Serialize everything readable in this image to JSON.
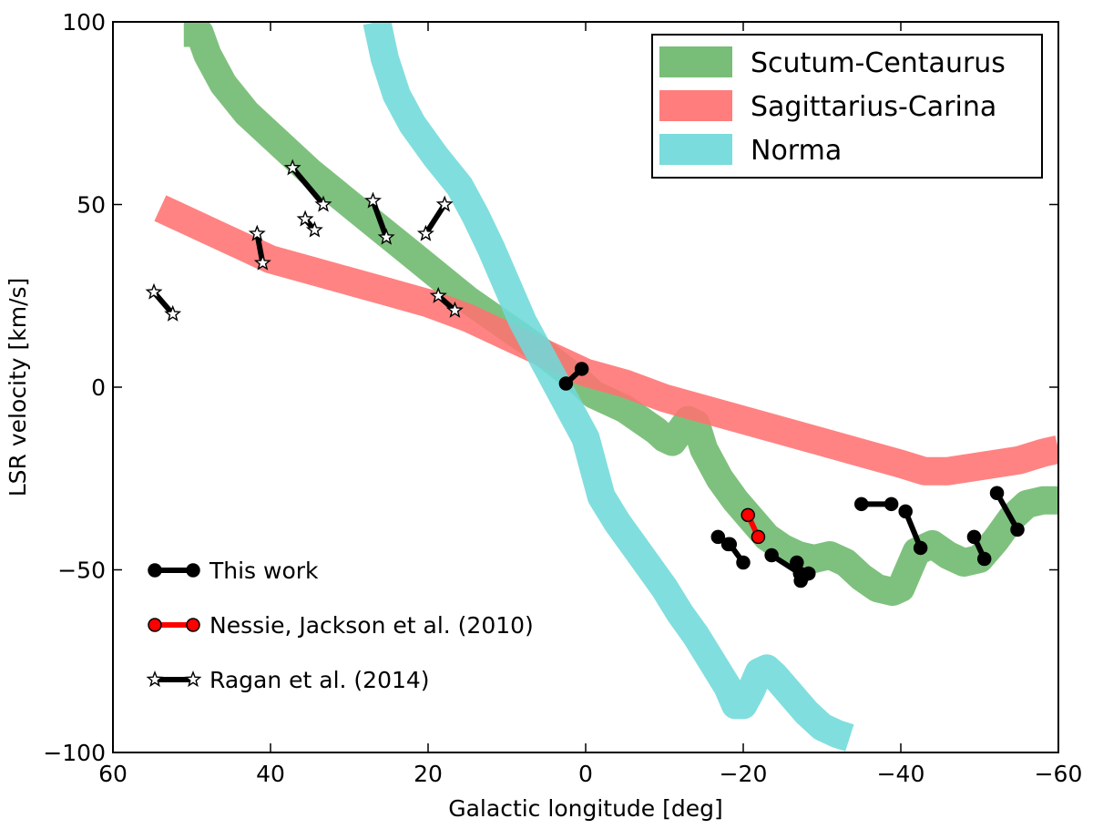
{
  "chart_data": {
    "type": "line",
    "xlabel": "Galactic longitude [deg]",
    "ylabel": "LSR velocity [km/s]",
    "xlim": [
      60,
      -60
    ],
    "ylim": [
      -100,
      100
    ],
    "xticks": [
      60,
      40,
      20,
      0,
      -20,
      -40,
      -60
    ],
    "yticks": [
      100,
      50,
      0,
      -50,
      -100
    ],
    "xtick_labels": [
      "60",
      "40",
      "20",
      "0",
      "−20",
      "−40",
      "−60"
    ],
    "ytick_labels": [
      "100",
      "50",
      "0",
      "−50",
      "−100"
    ],
    "arm_series": [
      {
        "name": "Scutum-Centaurus",
        "color": "#6cb86c",
        "points": [
          [
            51,
            97
          ],
          [
            49,
            97
          ],
          [
            48,
            91
          ],
          [
            46,
            83
          ],
          [
            43,
            75
          ],
          [
            39,
            67
          ],
          [
            35,
            59
          ],
          [
            31,
            52
          ],
          [
            27,
            45
          ],
          [
            23,
            38
          ],
          [
            19,
            31
          ],
          [
            15,
            24
          ],
          [
            11,
            18
          ],
          [
            7,
            12
          ],
          [
            4,
            7
          ],
          [
            1,
            2
          ],
          [
            -1,
            -2
          ],
          [
            -3,
            -4
          ],
          [
            -5,
            -6
          ],
          [
            -7,
            -9
          ],
          [
            -9,
            -12
          ],
          [
            -10,
            -14
          ],
          [
            -11,
            -15
          ],
          [
            -12,
            -12
          ],
          [
            -13,
            -9
          ],
          [
            -14,
            -10
          ],
          [
            -15,
            -17
          ],
          [
            -17,
            -25
          ],
          [
            -19,
            -31
          ],
          [
            -21,
            -36
          ],
          [
            -23,
            -41
          ],
          [
            -25,
            -44
          ],
          [
            -27,
            -46
          ],
          [
            -29,
            -47
          ],
          [
            -31,
            -46
          ],
          [
            -33,
            -48
          ],
          [
            -35,
            -52
          ],
          [
            -37,
            -55
          ],
          [
            -39,
            -56
          ],
          [
            -40,
            -55
          ],
          [
            -41,
            -50
          ],
          [
            -42,
            -45
          ],
          [
            -44,
            -43
          ],
          [
            -46,
            -46
          ],
          [
            -48,
            -48
          ],
          [
            -50,
            -47
          ],
          [
            -52,
            -42
          ],
          [
            -54,
            -36
          ],
          [
            -56,
            -32
          ],
          [
            -58,
            -31
          ],
          [
            -60,
            -31
          ]
        ]
      },
      {
        "name": "Sagittarius-Carina",
        "color": "#ff7272",
        "points": [
          [
            54,
            49
          ],
          [
            52,
            47
          ],
          [
            48,
            43
          ],
          [
            44,
            39
          ],
          [
            40,
            35
          ],
          [
            35,
            32
          ],
          [
            30,
            29
          ],
          [
            25,
            26
          ],
          [
            20,
            23
          ],
          [
            15,
            19
          ],
          [
            10,
            14
          ],
          [
            5,
            9
          ],
          [
            0,
            4
          ],
          [
            -5,
            1
          ],
          [
            -10,
            -3
          ],
          [
            -15,
            -6
          ],
          [
            -20,
            -9
          ],
          [
            -25,
            -12
          ],
          [
            -30,
            -15
          ],
          [
            -35,
            -18
          ],
          [
            -40,
            -21
          ],
          [
            -43,
            -23
          ],
          [
            -46,
            -23
          ],
          [
            -49,
            -22
          ],
          [
            -52,
            -21
          ],
          [
            -55,
            -20
          ],
          [
            -58,
            -18
          ],
          [
            -60,
            -17
          ]
        ]
      },
      {
        "name": "Norma",
        "color": "#6fd9d9",
        "points": [
          [
            26.5,
            100
          ],
          [
            25.5,
            90
          ],
          [
            24,
            80
          ],
          [
            22,
            72
          ],
          [
            19,
            63
          ],
          [
            16,
            55
          ],
          [
            14,
            47
          ],
          [
            12,
            38
          ],
          [
            10,
            28
          ],
          [
            8,
            18
          ],
          [
            6,
            10
          ],
          [
            4,
            2
          ],
          [
            2,
            -6
          ],
          [
            0,
            -14
          ],
          [
            -1,
            -22
          ],
          [
            -2,
            -30
          ],
          [
            -4,
            -37
          ],
          [
            -6,
            -43
          ],
          [
            -8,
            -49
          ],
          [
            -10,
            -55
          ],
          [
            -12,
            -62
          ],
          [
            -14,
            -68
          ],
          [
            -16,
            -75
          ],
          [
            -18,
            -82
          ],
          [
            -19,
            -87
          ],
          [
            -20,
            -87
          ],
          [
            -21,
            -83
          ],
          [
            -22,
            -78
          ],
          [
            -23,
            -77
          ],
          [
            -24,
            -79
          ],
          [
            -26,
            -84
          ],
          [
            -28,
            -89
          ],
          [
            -30,
            -93
          ],
          [
            -32,
            -95
          ],
          [
            -33.5,
            -96
          ]
        ]
      }
    ],
    "this_work_pairs": [
      [
        [
          0.5,
          5
        ],
        [
          2.5,
          1
        ]
      ],
      [
        [
          -16.8,
          -41
        ],
        [
          -18.1,
          -43
        ]
      ],
      [
        [
          -18.3,
          -43
        ],
        [
          -20,
          -48
        ]
      ],
      [
        [
          -23.6,
          -46
        ],
        [
          -27.2,
          -51
        ]
      ],
      [
        [
          -26.8,
          -48
        ],
        [
          -27.3,
          -53
        ]
      ],
      [
        [
          -27.5,
          -52
        ],
        [
          -28.3,
          -51
        ]
      ],
      [
        [
          -35,
          -32
        ],
        [
          -38.8,
          -32
        ]
      ],
      [
        [
          -40.6,
          -34
        ],
        [
          -42.5,
          -44
        ]
      ],
      [
        [
          -49.3,
          -41
        ],
        [
          -50.6,
          -47
        ]
      ],
      [
        [
          -52.2,
          -29
        ],
        [
          -54.8,
          -39
        ]
      ]
    ],
    "nessie_pairs": [
      [
        [
          -20.6,
          -35
        ],
        [
          -21.9,
          -41
        ]
      ]
    ],
    "ragan_pairs": [
      [
        [
          54.8,
          26
        ],
        [
          52.4,
          20
        ]
      ],
      [
        [
          41.7,
          42
        ],
        [
          41,
          34
        ]
      ],
      [
        [
          37.2,
          60
        ],
        [
          33.3,
          50
        ]
      ],
      [
        [
          35.6,
          46
        ],
        [
          34.4,
          43
        ]
      ],
      [
        [
          27,
          51
        ],
        [
          25.3,
          41
        ]
      ],
      [
        [
          20.3,
          42
        ],
        [
          17.9,
          50
        ]
      ],
      [
        [
          18.7,
          25
        ],
        [
          16.6,
          21
        ]
      ]
    ],
    "legend": {
      "position": "top-right",
      "entries": [
        "Scutum-Centaurus",
        "Sagittarius-Carina",
        "Norma"
      ]
    },
    "inner_legend": {
      "position": "lower-left",
      "entries": [
        "This work",
        "Nessie, Jackson et al. (2010)",
        "Ragan et al. (2014)"
      ]
    }
  }
}
